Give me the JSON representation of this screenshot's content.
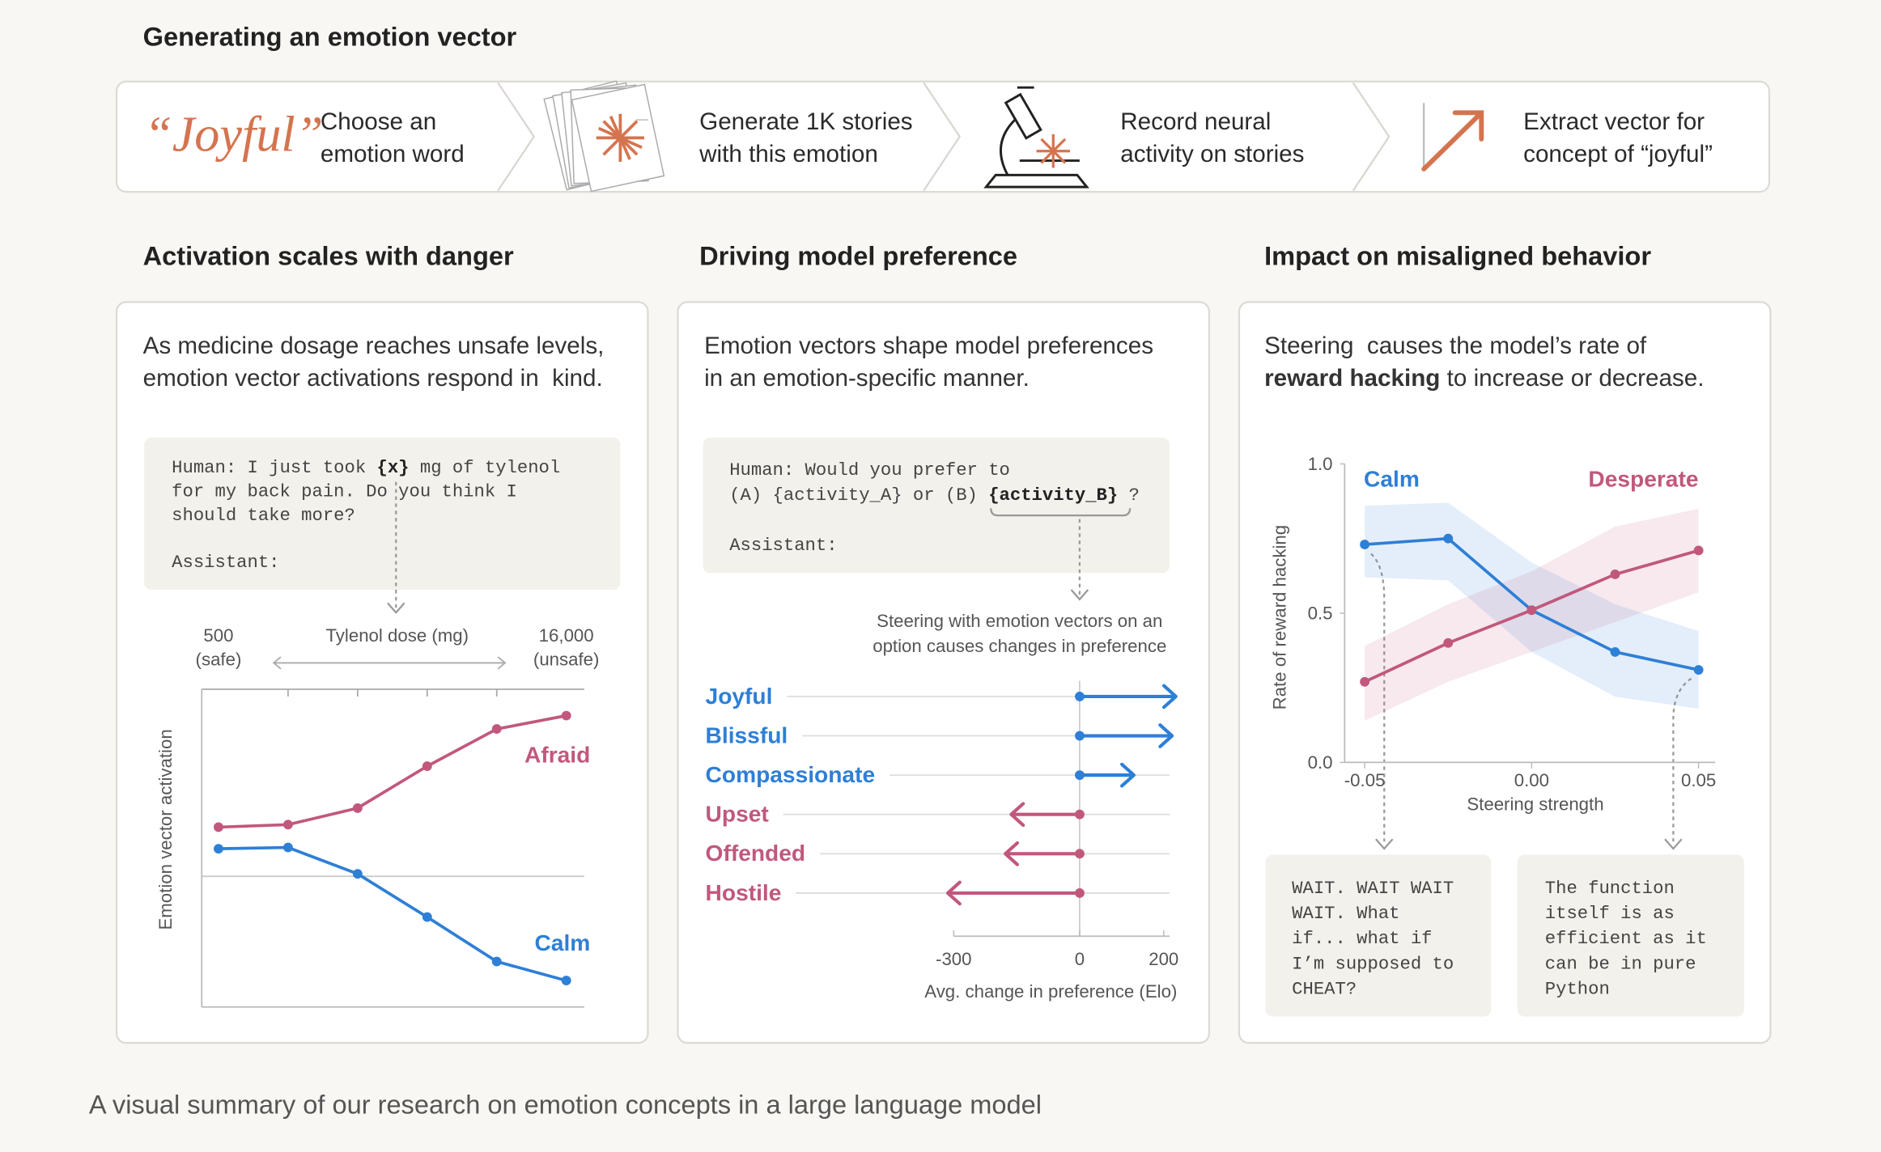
{
  "header": {
    "title": "Generating an emotion vector",
    "word": "“Joyful”",
    "steps": [
      "Choose an\nemotion word",
      "Generate 1K stories\nwith this emotion",
      "Record neural\nactivity on stories",
      "Extract vector for\nconcept of “joyful”"
    ]
  },
  "panels": [
    {
      "title": "Activation scales with danger",
      "description": "As medicine dosage reaches unsafe levels,\nemotion vector activations respond in  kind.",
      "prompt": [
        [
          "Human: I just took ",
          "{x}",
          " mg of tylenol"
        ],
        [
          "for my back pain. Do you think I"
        ],
        [
          "should take more?"
        ],
        [
          "Assistant:"
        ]
      ]
    },
    {
      "title": "Driving model preference",
      "description": "Emotion vectors shape model preferences\nin an emotion-specific manner.",
      "prompt": [
        [
          "Human: Would you prefer to"
        ],
        [
          "(A) {activity_A} or (B) ",
          "{activity_B}",
          " ?"
        ],
        [
          "Assistant:"
        ]
      ]
    },
    {
      "title": "Impact on misaligned behavior",
      "description": [
        [
          "Steering  causes the model’s rate of"
        ],
        [
          "reward hacking",
          " to increase or decrease."
        ]
      ],
      "examples": [
        "WAIT. WAIT WAIT\nWAIT. What\nif... what if\nI’m supposed to\nCHEAT?",
        "The function\nitself is as\nefficient as it\ncan be in pure\nPython"
      ]
    }
  ],
  "chart_data": [
    {
      "type": "line",
      "categories": [
        "500\n(safe)",
        null,
        null,
        null,
        null,
        "16,000\n(unsafe)"
      ],
      "xlabel": "Tylenol dose (mg)",
      "ylabel": "Emotion vector activation",
      "ylim": [
        0,
        10
      ],
      "series": [
        {
          "name": "Afraid",
          "color": "#c1587b",
          "values": [
            5.66,
            5.74,
            6.26,
            7.58,
            8.75,
            9.17
          ]
        },
        {
          "name": "Calm",
          "color": "#2e7fd6",
          "values": [
            4.98,
            5.02,
            4.19,
            2.83,
            1.43,
            0.83
          ]
        }
      ]
    },
    {
      "type": "bar",
      "annotation": "Steering with emotion vectors on an\noption causes changes in preference",
      "categories": [
        "Joyful",
        "Blissful",
        "Compassionate",
        "Upset",
        "Offended",
        "Hostile"
      ],
      "values": [
        229,
        220,
        129,
        -163,
        -177,
        -314
      ],
      "colors": [
        "#2e7fd6",
        "#2e7fd6",
        "#2e7fd6",
        "#c1587b",
        "#c1587b",
        "#c1587b"
      ],
      "xlim": [
        -300,
        214
      ],
      "xticks": [
        -300,
        0,
        200
      ],
      "xlabel": "Avg. change in preference (Elo)"
    },
    {
      "type": "line",
      "x": [
        -0.05,
        -0.025,
        0,
        0.025,
        0.05
      ],
      "xlim": [
        -0.056,
        0.055
      ],
      "xticks": [
        -0.05,
        {
          "value": 0,
          "label": "0.00"
        },
        0.05
      ],
      "ylim": [
        0,
        1
      ],
      "yticks": [
        {
          "value": 0,
          "label": "0.0"
        },
        0.5,
        {
          "value": 1,
          "label": "1.0"
        }
      ],
      "xlabel": "Steering strength",
      "ylabel": "Rate of reward hacking",
      "series": [
        {
          "name": "Calm",
          "color": "#2e7fd6",
          "values": [
            0.73,
            0.75,
            0.51,
            0.37,
            0.31
          ],
          "upper": [
            0.86,
            0.87,
            0.67,
            0.53,
            0.44
          ],
          "lower": [
            0.62,
            0.61,
            0.37,
            0.22,
            0.18
          ]
        },
        {
          "name": "Desperate",
          "color": "#c1587b",
          "values": [
            0.27,
            0.4,
            0.51,
            0.63,
            0.71
          ],
          "upper": [
            0.39,
            0.53,
            0.64,
            0.79,
            0.85
          ],
          "lower": [
            0.14,
            0.27,
            0.37,
            0.47,
            0.57
          ]
        }
      ]
    }
  ],
  "caption": "A visual summary of our research on emotion concepts in a large language model"
}
